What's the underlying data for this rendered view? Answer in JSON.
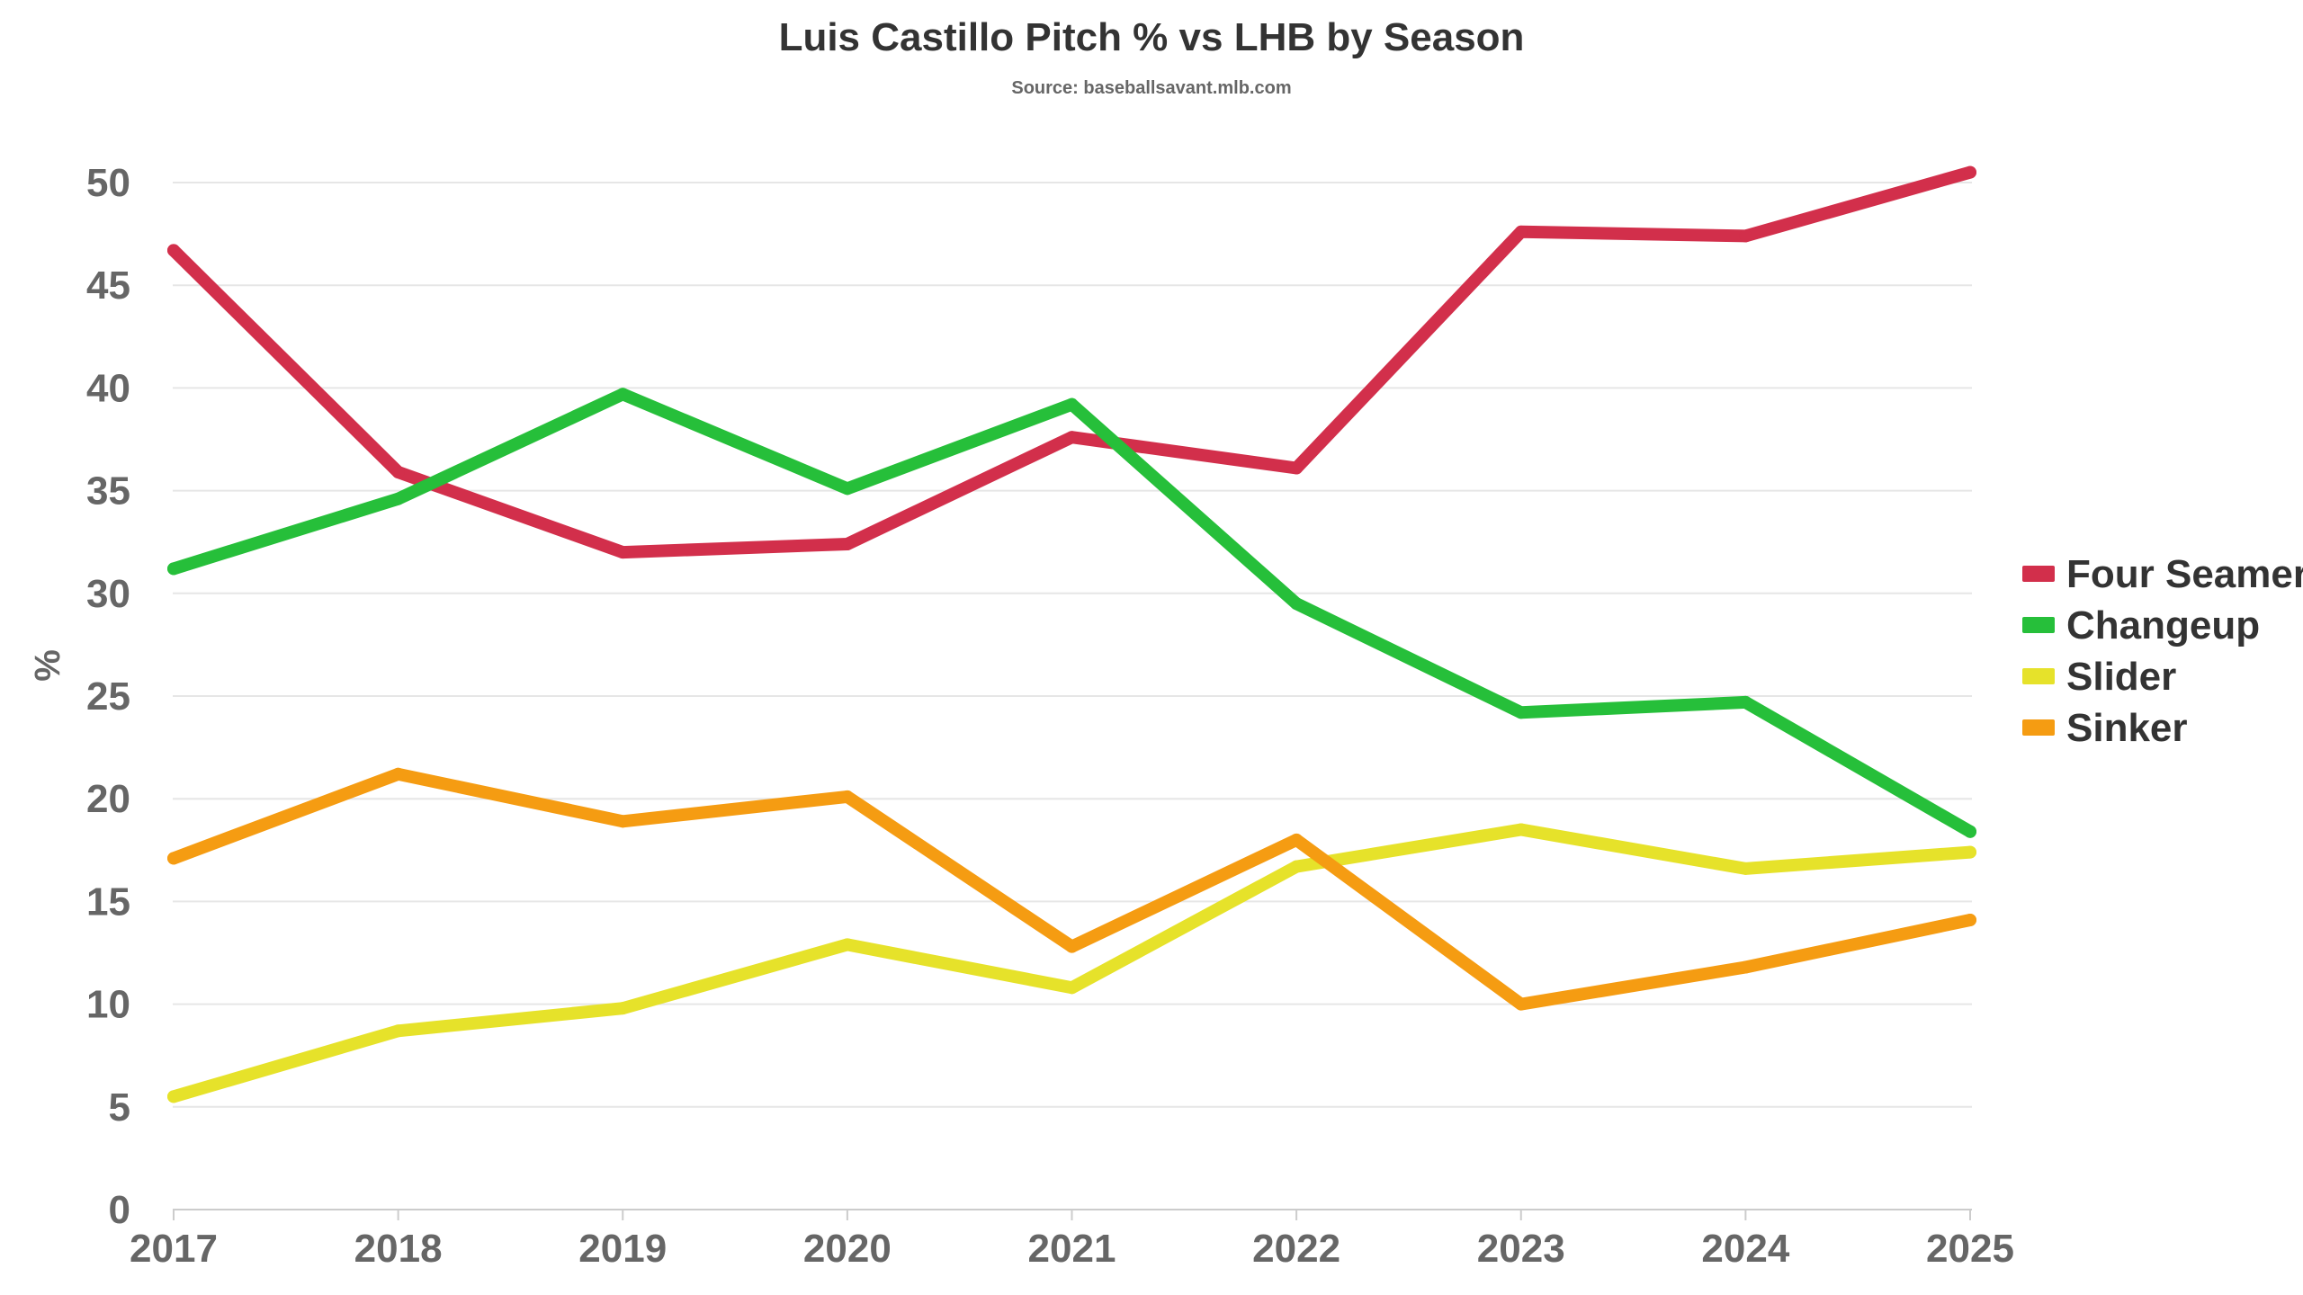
{
  "chart_data": {
    "type": "line",
    "title": "Luis Castillo Pitch % vs LHB by Season",
    "subtitle": "Source: baseballsavant.mlb.com",
    "xlabel": "",
    "ylabel": "%",
    "categories": [
      "2017",
      "2018",
      "2019",
      "2020",
      "2021",
      "2022",
      "2023",
      "2024",
      "2025"
    ],
    "ylim": [
      0,
      50
    ],
    "yticks": [
      0,
      5,
      10,
      15,
      20,
      25,
      30,
      35,
      40,
      45,
      50
    ],
    "grid": true,
    "legend_position": "right",
    "series": [
      {
        "name": "Four Seamer",
        "color": "#d22f4b",
        "values": [
          46.7,
          35.9,
          32.0,
          32.4,
          37.6,
          36.1,
          47.6,
          47.4,
          50.5
        ]
      },
      {
        "name": "Changeup",
        "color": "#26bf3a",
        "values": [
          31.2,
          34.6,
          39.7,
          35.1,
          39.2,
          29.5,
          24.2,
          24.7,
          18.4
        ]
      },
      {
        "name": "Slider",
        "color": "#e6e22a",
        "values": [
          5.5,
          8.7,
          9.8,
          12.9,
          10.8,
          16.7,
          18.5,
          16.6,
          17.4
        ]
      },
      {
        "name": "Sinker",
        "color": "#f59c12",
        "values": [
          17.1,
          21.2,
          18.9,
          20.1,
          12.8,
          18.0,
          10.0,
          11.8,
          14.1
        ]
      }
    ]
  }
}
